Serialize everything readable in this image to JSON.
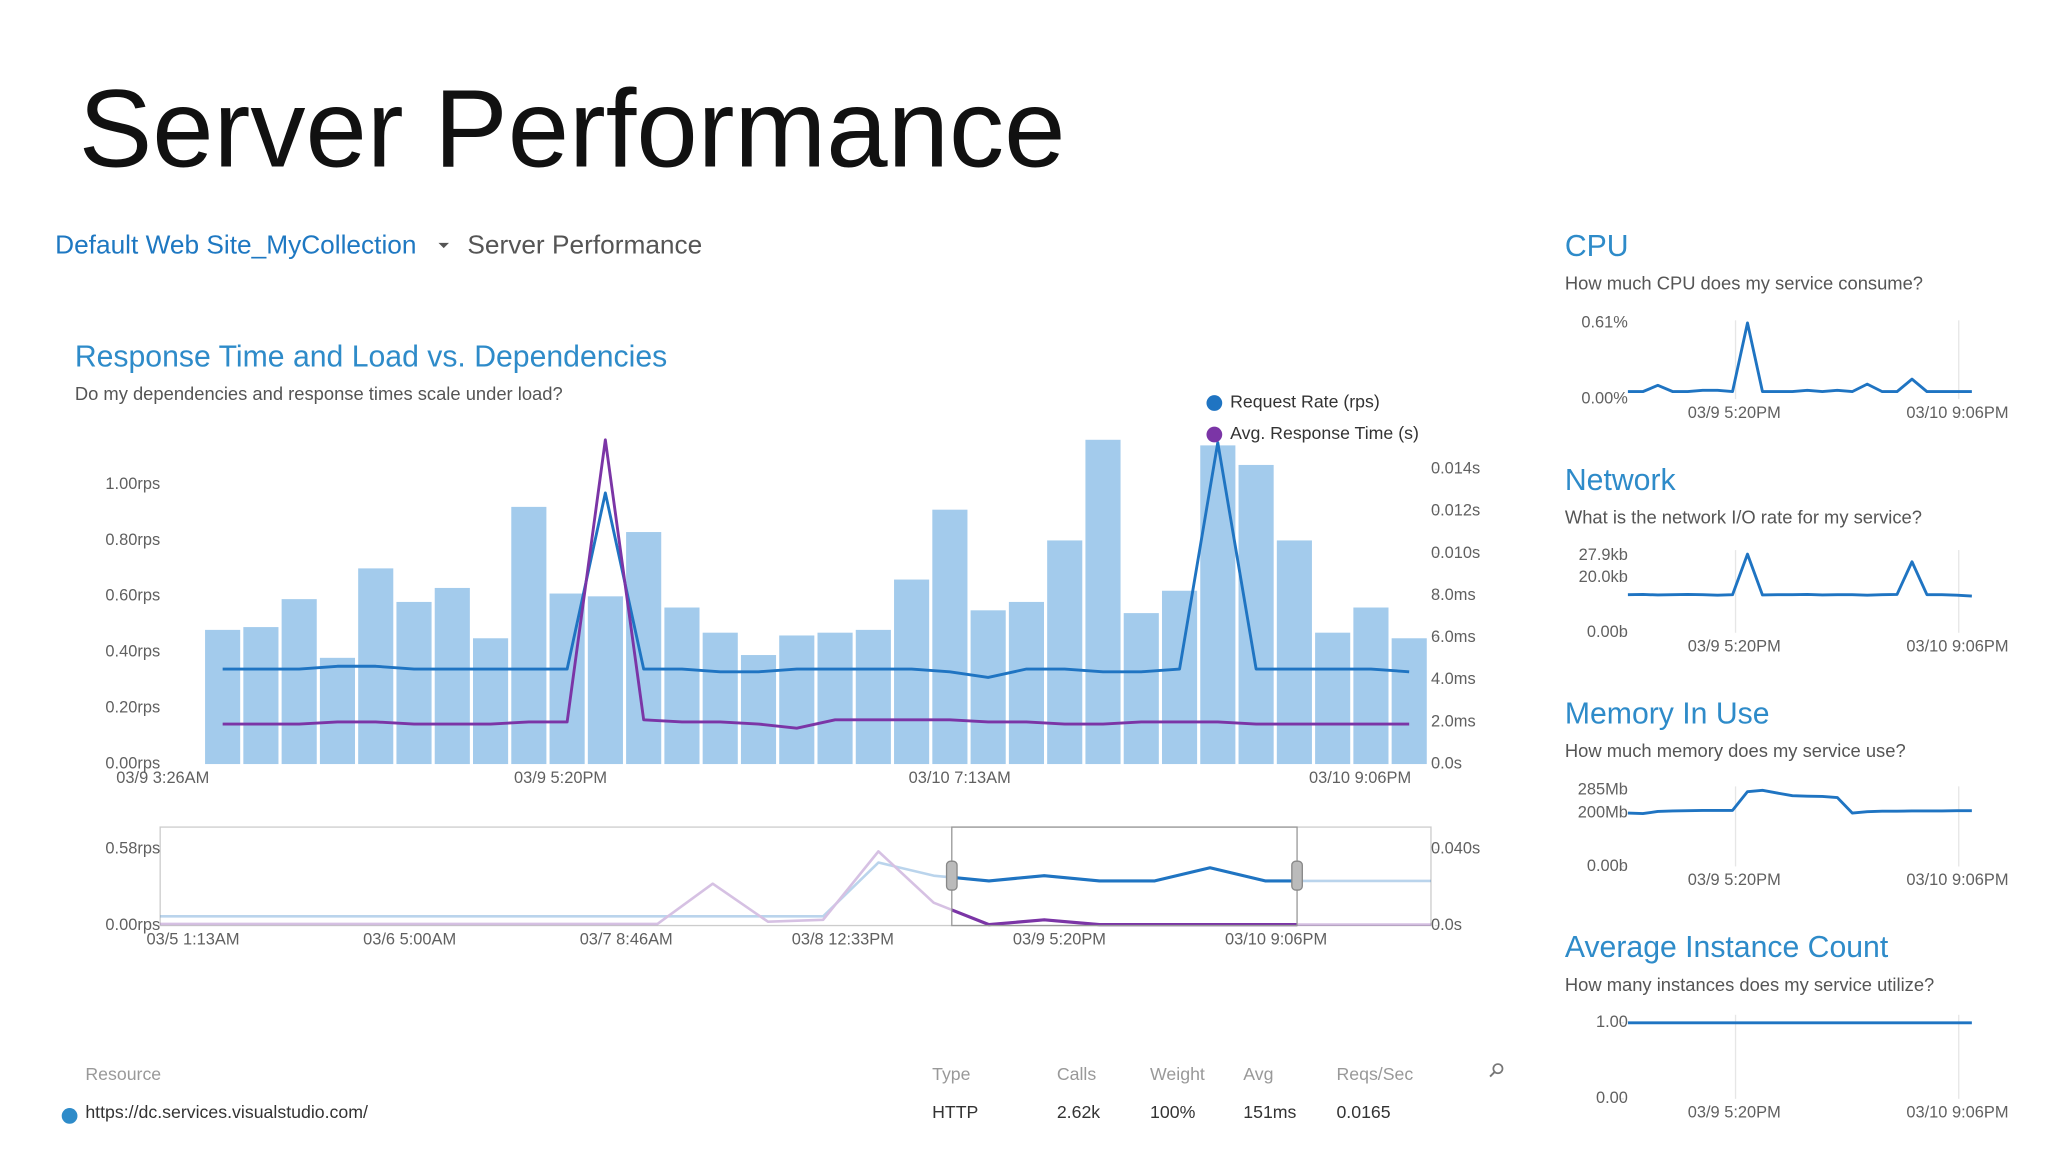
{
  "page_title": "Server Performance",
  "breadcrumb": {
    "site": "Default Web Site_MyCollection",
    "page": "Server Performance"
  },
  "chart_data": [
    {
      "type": "bar",
      "title": "Response Time and Load vs. Dependencies",
      "subtitle": "Do my dependencies and response times scale under load?",
      "bars": {
        "color": "#a3cbec",
        "values": [
          0.48,
          0.49,
          0.59,
          0.38,
          0.7,
          0.58,
          0.63,
          0.45,
          0.92,
          0.61,
          0.6,
          0.83,
          0.56,
          0.47,
          0.39,
          0.46,
          0.47,
          0.48,
          0.66,
          0.91,
          0.55,
          0.58,
          0.8,
          1.16,
          0.54,
          0.62,
          1.14,
          1.07,
          0.8,
          0.47,
          0.56,
          0.45
        ]
      },
      "series": [
        {
          "name": "Request Rate (rps)",
          "color": "#1f74c2",
          "values": [
            0.34,
            0.34,
            0.34,
            0.35,
            0.35,
            0.34,
            0.34,
            0.34,
            0.34,
            0.34,
            0.97,
            0.34,
            0.34,
            0.33,
            0.33,
            0.34,
            0.34,
            0.34,
            0.34,
            0.33,
            0.31,
            0.34,
            0.34,
            0.33,
            0.33,
            0.34,
            1.15,
            0.34,
            0.34,
            0.34,
            0.34,
            0.33
          ]
        },
        {
          "name": "Avg. Response Time (s)",
          "color": "#7b35a6",
          "axis": "y2",
          "values": [
            0.0019,
            0.0019,
            0.0019,
            0.002,
            0.002,
            0.0019,
            0.0019,
            0.0019,
            0.002,
            0.002,
            0.0154,
            0.0021,
            0.002,
            0.002,
            0.0019,
            0.0017,
            0.0021,
            0.0021,
            0.0021,
            0.0021,
            0.002,
            0.002,
            0.0019,
            0.0019,
            0.002,
            0.002,
            0.002,
            0.0019,
            0.0019,
            0.0019,
            0.0019,
            0.0019
          ]
        }
      ],
      "ylim": [
        0,
        1.16
      ],
      "yticks": [
        {
          "value": 0,
          "label": "0.00rps"
        },
        {
          "value": 0.2,
          "label": "0.20rps"
        },
        {
          "value": 0.4,
          "label": "0.40rps"
        },
        {
          "value": 0.6,
          "label": "0.60rps"
        },
        {
          "value": 0.8,
          "label": "0.80rps"
        },
        {
          "value": 1,
          "label": "1.00rps"
        }
      ],
      "y2lim": [
        0,
        0.0154
      ],
      "y2ticks": [
        {
          "value": 0,
          "label": "0.0s"
        },
        {
          "value": 0.002,
          "label": "2.0ms"
        },
        {
          "value": 0.004,
          "label": "4.0ms"
        },
        {
          "value": 0.006,
          "label": "6.0ms"
        },
        {
          "value": 0.008,
          "label": "8.0ms"
        },
        {
          "value": 0.01,
          "label": "0.010s"
        },
        {
          "value": 0.012,
          "label": "0.012s"
        },
        {
          "value": 0.014,
          "label": "0.014s"
        }
      ],
      "xtick_labels": [
        "03/9 3:26AM",
        "03/9 5:20PM",
        "03/10 7:13AM",
        "03/10 9:06PM"
      ],
      "legend": "top-right"
    },
    {
      "type": "line",
      "series": [
        {
          "color": "#1f74c2",
          "values": [
            0.07,
            0.07,
            0.07,
            0.07,
            0.07,
            0.07,
            0.07,
            0.07,
            0.07,
            0.07,
            0.07,
            0.07,
            0.07,
            0.48,
            0.38,
            0.34,
            0.38,
            0.34,
            0.34,
            0.44,
            0.34,
            0.34,
            0.34,
            0.34
          ]
        },
        {
          "color": "#7b35a6",
          "axis": "y2",
          "values": [
            0.0008,
            0.0008,
            0.0008,
            0.0008,
            0.0008,
            0.0008,
            0.0008,
            0.0008,
            0.0008,
            0.0008,
            0.022,
            0.002,
            0.003,
            0.039,
            0.012,
            0.0005,
            0.003,
            0.0005,
            0.0005,
            0.0005,
            0.0005,
            0.0005,
            0.0005,
            0.0005
          ]
        }
      ],
      "ylim": [
        0,
        0.58
      ],
      "yticks": [
        {
          "value": 0,
          "label": "0.00rps"
        },
        {
          "value": 0.58,
          "label": "0.58rps"
        }
      ],
      "y2lim": [
        0,
        0.04
      ],
      "y2ticks": [
        {
          "value": 0,
          "label": "0.0s"
        },
        {
          "value": 0.04,
          "label": "0.040s"
        }
      ],
      "xtick_labels": [
        "03/5 1:13AM",
        "03/6 5:00AM",
        "03/7 8:46AM",
        "03/8 12:33PM",
        "03/9 5:20PM",
        "03/10 9:06PM"
      ]
    },
    {
      "type": "line",
      "title": "CPU",
      "subtitle": "How much CPU does my service consume?",
      "color": "#1f74c2",
      "values": [
        0.06,
        0.06,
        0.11,
        0.06,
        0.06,
        0.07,
        0.07,
        0.06,
        0.61,
        0.06,
        0.06,
        0.06,
        0.07,
        0.06,
        0.07,
        0.06,
        0.12,
        0.06,
        0.06,
        0.16,
        0.06,
        0.06,
        0.06,
        0.06
      ],
      "ylim": [
        0,
        0.61
      ],
      "yticks": [
        {
          "value": 0,
          "label": "0.00%"
        },
        {
          "value": 0.61,
          "label": "0.61%"
        }
      ],
      "xtick_labels": [
        "03/9 5:20PM",
        "03/10 9:06PM"
      ]
    },
    {
      "type": "line",
      "title": "Network",
      "subtitle": "What is the network I/O rate for my service?",
      "color": "#1f74c2",
      "values": [
        13.8,
        13.9,
        13.7,
        13.8,
        13.9,
        13.8,
        13.6,
        13.8,
        28.5,
        13.7,
        13.8,
        13.8,
        13.9,
        13.7,
        13.8,
        13.8,
        13.6,
        13.8,
        13.9,
        25.7,
        13.8,
        13.8,
        13.6,
        13.3
      ],
      "ylim": [
        0,
        29
      ],
      "yticks": [
        {
          "value": 0,
          "label": "0.00b"
        },
        {
          "value": 20,
          "label": "20.0kb"
        },
        {
          "value": 27.9,
          "label": "27.9kb"
        }
      ],
      "xtick_labels": [
        "03/9 5:20PM",
        "03/10 9:06PM"
      ]
    },
    {
      "type": "line",
      "title": "Memory In Use",
      "subtitle": "How much memory does my service use?",
      "color": "#1f74c2",
      "values": [
        200,
        198,
        206,
        208,
        209,
        210,
        210,
        210,
        280,
        285,
        275,
        265,
        263,
        262,
        258,
        200,
        205,
        207,
        207,
        208,
        208,
        208,
        209,
        209
      ],
      "ylim": [
        0,
        290
      ],
      "yticks": [
        {
          "value": 0,
          "label": "0.00b"
        },
        {
          "value": 200,
          "label": "200Mb"
        },
        {
          "value": 285,
          "label": "285Mb"
        }
      ],
      "xtick_labels": [
        "03/9 5:20PM",
        "03/10 9:06PM"
      ]
    },
    {
      "type": "line",
      "title": "Average Instance Count",
      "subtitle": "How many instances does my service utilize?",
      "color": "#1f74c2",
      "values": [
        1,
        1,
        1,
        1,
        1,
        1,
        1,
        1,
        1,
        1,
        1,
        1,
        1,
        1,
        1,
        1,
        1,
        1,
        1,
        1,
        1,
        1,
        1,
        1
      ],
      "ylim": [
        0,
        1.07
      ],
      "yticks": [
        {
          "value": 0,
          "label": "0.00"
        },
        {
          "value": 1,
          "label": "1.00"
        }
      ],
      "xtick_labels": [
        "03/9 5:20PM",
        "03/10 9:06PM"
      ]
    }
  ],
  "table": {
    "headers": [
      "Resource",
      "Type",
      "Calls",
      "Weight",
      "Avg",
      "Reqs/Sec"
    ],
    "rows": [
      [
        "https://dc.services.visualstudio.com/",
        "HTTP",
        "2.62k",
        "100%",
        "151ms",
        "0.0165"
      ]
    ]
  }
}
